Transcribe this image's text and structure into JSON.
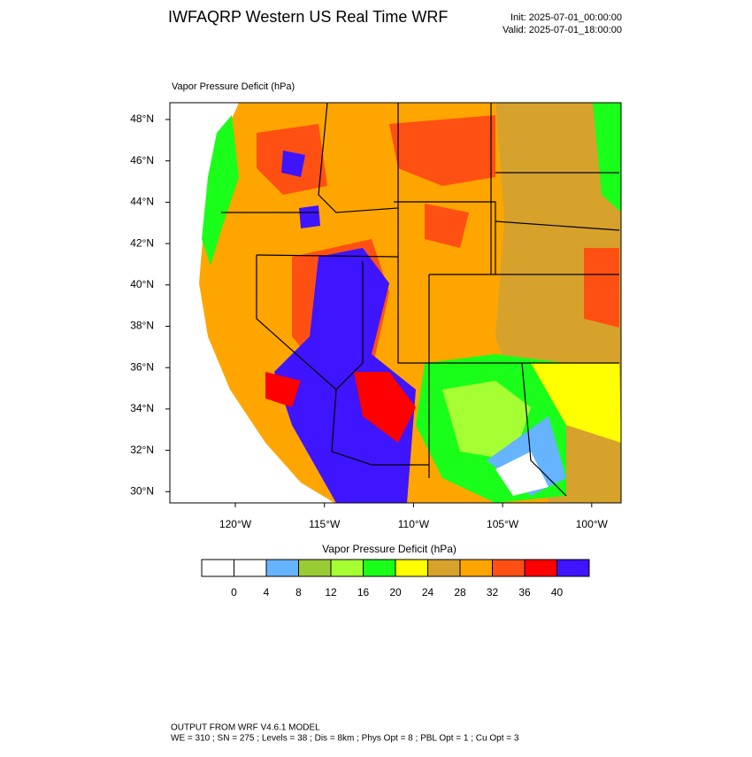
{
  "header": {
    "title": "IWFAQRP Western US Real Time WRF",
    "init": "Init: 2025-07-01_00:00:00",
    "valid": "Valid: 2025-07-01_18:00:00"
  },
  "map": {
    "title": "Vapor Pressure Deficit   (hPa)",
    "lat_labels": [
      "48°N",
      "46°N",
      "44°N",
      "42°N",
      "40°N",
      "38°N",
      "36°N",
      "34°N",
      "32°N",
      "30°N"
    ],
    "lon_labels": [
      "120°W",
      "115°W",
      "110°W",
      "105°W",
      "100°W"
    ]
  },
  "colorbar": {
    "title": "Vapor Pressure Deficit  (hPa)",
    "colors": [
      "#ffffff",
      "#ffffff",
      "#66b3ff",
      "#99cc33",
      "#a6ff33",
      "#19ff19",
      "#ffff00",
      "#d6a22c",
      "#ffa500",
      "#ff5014",
      "#ff0000",
      "#3f14ff"
    ],
    "labels": [
      0,
      4,
      8,
      12,
      16,
      20,
      24,
      28,
      32,
      36,
      40
    ]
  },
  "footer": {
    "line1": "OUTPUT FROM WRF V4.6.1 MODEL",
    "line2": "WE = 310 ; SN = 275 ; Levels = 38 ; Dis = 8km ; Phys Opt = 8 ; PBL Opt = 1 ; Cu Opt = 3"
  }
}
